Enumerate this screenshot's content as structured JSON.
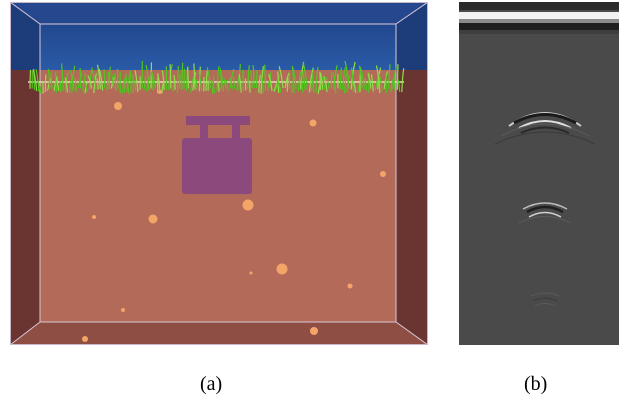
{
  "captions": {
    "a": "(a)",
    "b": "(b)"
  },
  "colors": {
    "sky": "#20488f",
    "soil": "#b46a58",
    "soil_side": "#6e3a34",
    "object": "#8c4a7c",
    "rock": "#f3a568",
    "grass": "#4ec81e",
    "radar_bg": "#4a4a4a"
  }
}
